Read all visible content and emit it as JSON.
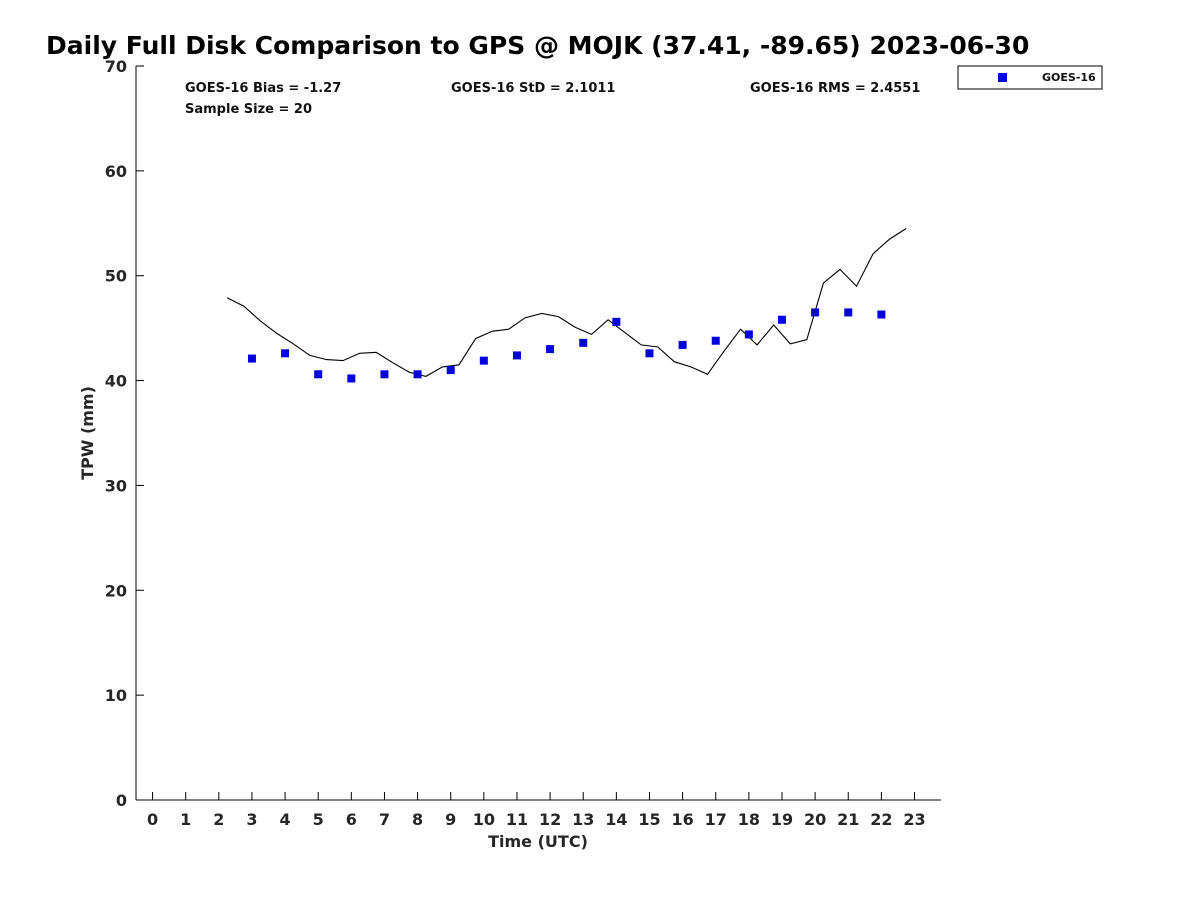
{
  "chart_data": {
    "type": "scatter",
    "title": "Daily Full Disk Comparison to GPS @ MOJK (37.41, -89.65) 2023-06-30",
    "xlabel": "Time (UTC)",
    "ylabel": "TPW (mm)",
    "xlim": [
      -0.5,
      23.8
    ],
    "ylim": [
      0,
      70
    ],
    "x_ticks": [
      0,
      1,
      2,
      3,
      4,
      5,
      6,
      7,
      8,
      9,
      10,
      11,
      12,
      13,
      14,
      15,
      16,
      17,
      18,
      19,
      20,
      21,
      22,
      23
    ],
    "y_ticks": [
      0,
      10,
      20,
      30,
      40,
      50,
      60,
      70
    ],
    "grid": false,
    "stats": {
      "bias": "GOES-16 Bias = -1.27",
      "std": "GOES-16 StD = 2.1011",
      "rms": "GOES-16 RMS = 2.4551",
      "sample": "Sample Size = 20"
    },
    "legend": {
      "position": "outside-top-right",
      "entries": [
        "GOES-16"
      ]
    },
    "series": [
      {
        "name": "GOES-16",
        "kind": "scatter",
        "marker": "square",
        "color": "#0000dd",
        "x": [
          3,
          4,
          5,
          6,
          7,
          8,
          9,
          10,
          11,
          12,
          13,
          14,
          15,
          16,
          17,
          18,
          19,
          20,
          21,
          22
        ],
        "y": [
          42.1,
          42.6,
          40.6,
          40.2,
          40.6,
          40.6,
          41.0,
          41.9,
          42.4,
          43.0,
          43.6,
          45.6,
          42.6,
          43.4,
          43.8,
          44.4,
          45.8,
          46.5,
          46.5,
          46.3
        ]
      },
      {
        "kind": "line",
        "color": "#000000",
        "x": [
          2.25,
          2.75,
          3.25,
          3.75,
          4.25,
          4.75,
          5.25,
          5.75,
          6.25,
          6.75,
          7.25,
          7.75,
          8.25,
          8.75,
          9.25,
          9.75,
          10.25,
          10.75,
          11.25,
          11.75,
          12.25,
          12.75,
          13.25,
          13.75,
          14.25,
          14.75,
          15.25,
          15.75,
          16.25,
          16.75,
          17.25,
          17.75,
          18.25,
          18.75,
          19.25,
          19.75,
          20.25,
          20.75,
          21.25,
          21.75,
          22.25,
          22.75
        ],
        "y": [
          47.9,
          47.1,
          45.7,
          44.5,
          43.5,
          42.4,
          42.0,
          41.9,
          42.6,
          42.7,
          41.7,
          40.8,
          40.4,
          41.3,
          41.5,
          44.0,
          44.7,
          44.9,
          46.0,
          46.4,
          46.1,
          45.1,
          44.4,
          45.8,
          44.6,
          43.4,
          43.2,
          41.8,
          41.3,
          40.6,
          42.8,
          44.9,
          43.4,
          45.3,
          43.5,
          43.9,
          49.3,
          50.6,
          49.0,
          52.1,
          53.5,
          54.5
        ]
      }
    ]
  }
}
